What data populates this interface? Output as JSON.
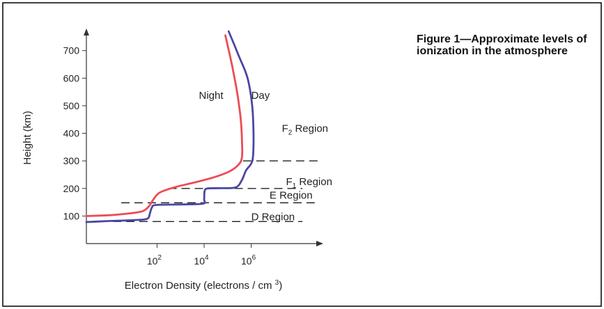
{
  "caption": "Figure 1—Approximate levels of ionization in the atmosphere",
  "chart_data": {
    "type": "line",
    "title": "",
    "xlabel_prefix": "Electron Density (electrons / cm ",
    "xlabel_sup": "3",
    "xlabel_suffix": ")",
    "ylabel": "Height (km)",
    "x_scale": "log",
    "y_ticks": [
      100,
      200,
      300,
      400,
      500,
      600,
      700
    ],
    "x_ticks": [
      {
        "value": 100,
        "base": "10",
        "exp": "2"
      },
      {
        "value": 10000,
        "base": "10",
        "exp": "4"
      },
      {
        "value": 1000000,
        "base": "10",
        "exp": "6"
      }
    ],
    "xlim": [
      0.1,
      1000000000
    ],
    "ylim": [
      0,
      770
    ],
    "series": [
      {
        "name": "Night",
        "color": "#ee4b55",
        "points": [
          [
            0.1,
            100
          ],
          [
            1,
            103
          ],
          [
            8,
            110
          ],
          [
            25,
            118
          ],
          [
            45,
            135
          ],
          [
            70,
            160
          ],
          [
            130,
            185
          ],
          [
            600,
            205
          ],
          [
            4000,
            222
          ],
          [
            25000,
            240
          ],
          [
            120000,
            262
          ],
          [
            280000,
            285
          ],
          [
            400000,
            310
          ],
          [
            410000,
            360
          ],
          [
            360000,
            450
          ],
          [
            250000,
            550
          ],
          [
            150000,
            650
          ],
          [
            80000,
            755
          ]
        ]
      },
      {
        "name": "Day",
        "color": "#4a47a3",
        "points": [
          [
            0.1,
            78
          ],
          [
            1,
            82
          ],
          [
            10,
            85
          ],
          [
            38,
            90
          ],
          [
            50,
            110
          ],
          [
            60,
            130
          ],
          [
            90,
            140
          ],
          [
            1000,
            142
          ],
          [
            9000,
            145
          ],
          [
            10000,
            160
          ],
          [
            10500,
            190
          ],
          [
            14000,
            200
          ],
          [
            50000,
            201
          ],
          [
            220000,
            204
          ],
          [
            400000,
            230
          ],
          [
            600000,
            265
          ],
          [
            1000000,
            290
          ],
          [
            1200000,
            320
          ],
          [
            1250000,
            400
          ],
          [
            1100000,
            500
          ],
          [
            700000,
            600
          ],
          [
            300000,
            680
          ],
          [
            110000,
            770
          ]
        ]
      }
    ],
    "boundaries": [
      {
        "y": 300,
        "from": 450000,
        "to": 800000000
      },
      {
        "y": 200,
        "from": 300,
        "to": 150000000
      },
      {
        "y": 148,
        "from": 3,
        "to": 500000000
      },
      {
        "y": 80,
        "from": 0.1,
        "to": 150000000
      }
    ],
    "curve_labels": [
      {
        "text": "Night",
        "x": 6000,
        "y": 525
      },
      {
        "text": "Day",
        "x": 1000000,
        "y": 525
      }
    ],
    "region_labels": [
      {
        "letter": "F",
        "sub": "2",
        "rest": " Region",
        "x": 20000000,
        "y": 405
      },
      {
        "letter": "F",
        "sub": "1",
        "rest": " Region",
        "x": 30000000,
        "y": 212
      },
      {
        "letter": "",
        "sub": "",
        "rest": "E Region",
        "x": 6000000,
        "y": 163
      },
      {
        "letter": "",
        "sub": "",
        "rest": "D Region",
        "x": 1000000,
        "y": 85
      }
    ]
  }
}
